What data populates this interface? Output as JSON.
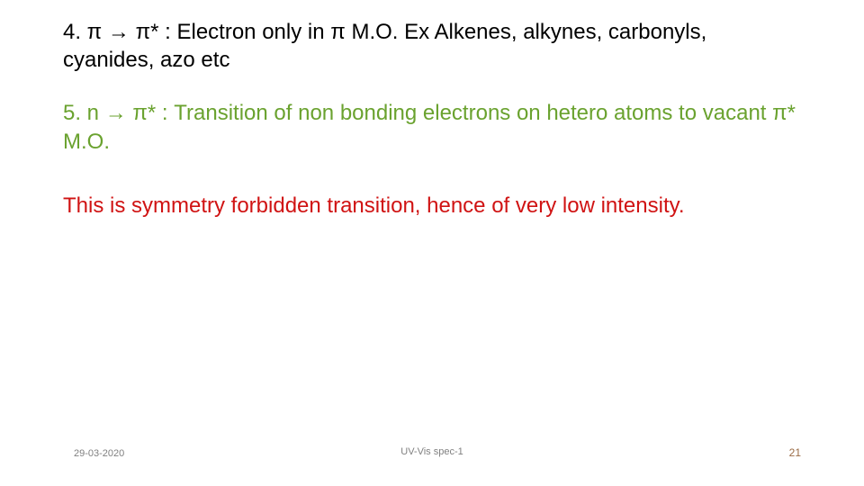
{
  "item4": {
    "text": "4. π → π* : Electron only in π  M.O. Ex Alkenes, alkynes, carbonyls, cyanides, azo etc",
    "color": "#000000",
    "fontsize": 24
  },
  "item5": {
    "text": "5. n → π* : Transition of non bonding electrons on hetero atoms to vacant π* M.O.",
    "color": "#6aa22f",
    "fontsize": 24
  },
  "item6": {
    "text": "This is symmetry forbidden transition, hence of very low intensity.",
    "color": "#d01313",
    "fontsize": 24,
    "font": "Comic Sans MS"
  },
  "footer": {
    "date": "29-03-2020",
    "title": "UV-Vis spec-1",
    "page": "21"
  },
  "background_color": "#ffffff"
}
